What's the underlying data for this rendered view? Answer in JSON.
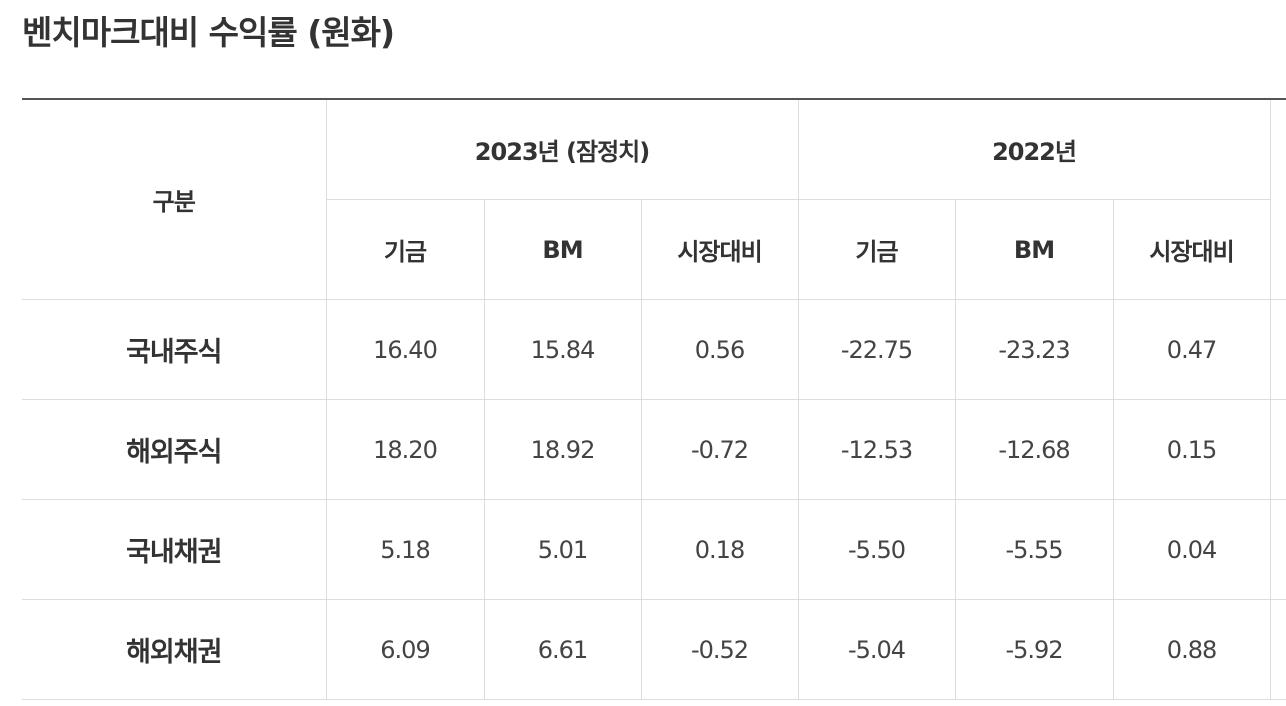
{
  "title": "벤치마크대비 수익률 (원화)",
  "table": {
    "corner": "구분",
    "groups": [
      {
        "label": "2023년 (잠정치)",
        "columns": [
          "기금",
          "BM",
          "시장대비"
        ]
      },
      {
        "label": "2022년",
        "columns": [
          "기금",
          "BM",
          "시장대비"
        ]
      }
    ],
    "rows": [
      [
        "국내주식",
        "16.40",
        "15.84",
        "0.56",
        "-22.75",
        "-23.23",
        "0.47"
      ],
      [
        "해외주식",
        "18.20",
        "18.92",
        "-0.72",
        "-12.53",
        "-12.68",
        "0.15"
      ],
      [
        "국내채권",
        "5.18",
        "5.01",
        "0.18",
        "-5.50",
        "-5.55",
        "0.04"
      ],
      [
        "해외채권",
        "6.09",
        "6.61",
        "-0.52",
        "-5.04",
        "-5.92",
        "0.88"
      ]
    ]
  }
}
